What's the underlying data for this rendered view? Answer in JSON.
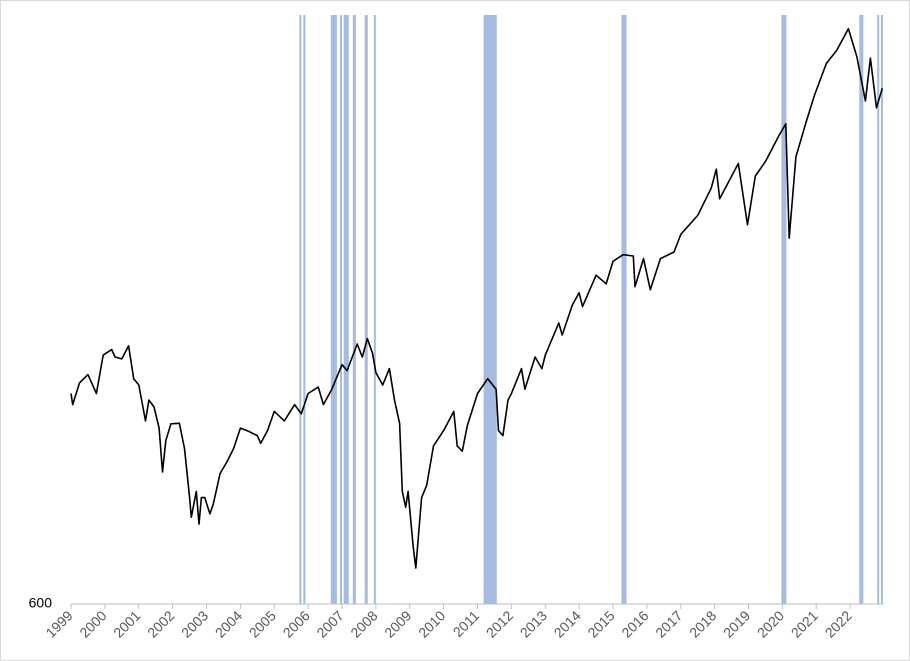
{
  "chart_data": {
    "type": "line",
    "log_scale": true,
    "color": "#000000",
    "band_color": "#a6bbe2",
    "x": [
      1999.0,
      1999.05,
      1999.25,
      1999.5,
      1999.75,
      1999.95,
      2000.2,
      2000.3,
      2000.5,
      2000.7,
      2000.85,
      2001.0,
      2001.2,
      2001.3,
      2001.45,
      2001.6,
      2001.7,
      2001.8,
      2001.95,
      2002.2,
      2002.35,
      2002.5,
      2002.55,
      2002.7,
      2002.78,
      2002.85,
      2002.95,
      2003.1,
      2003.2,
      2003.4,
      2003.6,
      2003.8,
      2004.0,
      2004.2,
      2004.5,
      2004.6,
      2004.8,
      2005.0,
      2005.3,
      2005.6,
      2005.8,
      2006.0,
      2006.3,
      2006.45,
      2006.7,
      2007.0,
      2007.15,
      2007.45,
      2007.6,
      2007.75,
      2007.9,
      2008.0,
      2008.2,
      2008.4,
      2008.55,
      2008.7,
      2008.78,
      2008.88,
      2008.95,
      2009.1,
      2009.18,
      2009.35,
      2009.5,
      2009.7,
      2010.0,
      2010.3,
      2010.4,
      2010.55,
      2010.7,
      2011.0,
      2011.3,
      2011.55,
      2011.62,
      2011.75,
      2011.9,
      2012.0,
      2012.3,
      2012.4,
      2012.7,
      2012.9,
      2013.0,
      2013.4,
      2013.5,
      2013.8,
      2014.0,
      2014.1,
      2014.5,
      2014.8,
      2015.0,
      2015.3,
      2015.6,
      2015.65,
      2015.9,
      2016.1,
      2016.4,
      2016.8,
      2017.0,
      2017.5,
      2017.9,
      2018.05,
      2018.15,
      2018.7,
      2018.97,
      2019.2,
      2019.5,
      2019.9,
      2020.1,
      2020.2,
      2020.4,
      2020.7,
      2020.95,
      2021.3,
      2021.6,
      2021.95,
      2022.2,
      2022.45,
      2022.6,
      2022.78,
      2022.95
    ],
    "values": [
      1280,
      1230,
      1330,
      1370,
      1280,
      1470,
      1500,
      1460,
      1450,
      1520,
      1350,
      1320,
      1160,
      1250,
      1220,
      1130,
      965,
      1080,
      1148,
      1150,
      1050,
      880,
      820,
      900,
      800,
      880,
      880,
      830,
      860,
      960,
      1000,
      1050,
      1130,
      1120,
      1100,
      1070,
      1120,
      1200,
      1160,
      1230,
      1190,
      1280,
      1310,
      1230,
      1300,
      1420,
      1390,
      1530,
      1460,
      1560,
      1480,
      1380,
      1320,
      1400,
      1250,
      1150,
      900,
      850,
      900,
      740,
      683,
      880,
      920,
      1060,
      1120,
      1200,
      1060,
      1040,
      1140,
      1280,
      1350,
      1300,
      1120,
      1100,
      1250,
      1280,
      1400,
      1300,
      1460,
      1400,
      1470,
      1650,
      1580,
      1760,
      1840,
      1750,
      1960,
      1900,
      2060,
      2110,
      2100,
      1880,
      2080,
      1860,
      2080,
      2130,
      2270,
      2430,
      2680,
      2870,
      2580,
      2930,
      2350,
      2800,
      2950,
      3240,
      3380,
      2240,
      3000,
      3400,
      3750,
      4200,
      4400,
      4760,
      4300,
      3670,
      4280,
      3580,
      3840
    ],
    "shaded_periods": [
      [
        2005.74,
        2005.79
      ],
      [
        2005.86,
        2005.91
      ],
      [
        2006.67,
        2006.85
      ],
      [
        2006.94,
        2006.99
      ],
      [
        2007.05,
        2007.2
      ],
      [
        2007.32,
        2007.41
      ],
      [
        2007.67,
        2007.76
      ],
      [
        2007.94,
        2008.0
      ],
      [
        2011.18,
        2011.57
      ],
      [
        2015.25,
        2015.4
      ],
      [
        2019.97,
        2020.12
      ],
      [
        2022.27,
        2022.39
      ],
      [
        2022.8,
        2022.84
      ],
      [
        2022.91,
        2022.94
      ]
    ],
    "xlim": [
      1999,
      2023
    ],
    "xticks": [
      1999,
      2000,
      2001,
      2002,
      2003,
      2004,
      2005,
      2006,
      2007,
      2008,
      2009,
      2010,
      2011,
      2012,
      2013,
      2014,
      2015,
      2016,
      2017,
      2018,
      2019,
      2020,
      2021,
      2022
    ],
    "ylim": [
      600,
      5000
    ],
    "yticks": [
      600
    ]
  }
}
